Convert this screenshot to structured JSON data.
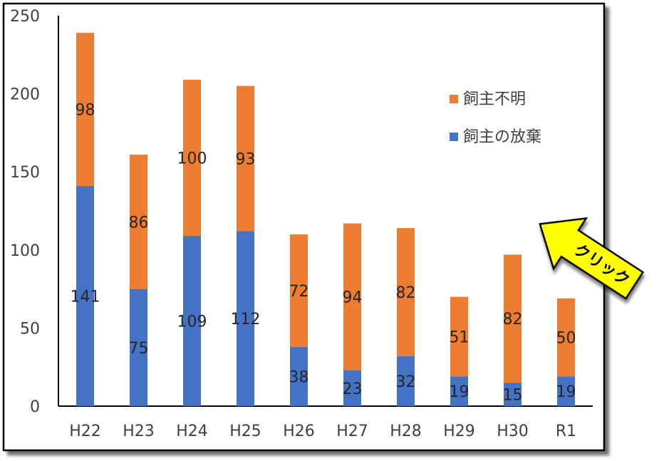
{
  "chart_data": {
    "type": "bar",
    "stacked": true,
    "categories": [
      "H22",
      "H23",
      "H24",
      "H25",
      "H26",
      "H27",
      "H28",
      "H29",
      "H30",
      "R1"
    ],
    "series": [
      {
        "name": "飼主の放棄",
        "color": "#4472c4",
        "values": [
          141,
          75,
          109,
          112,
          38,
          23,
          32,
          19,
          15,
          19
        ]
      },
      {
        "name": "飼主不明",
        "color": "#ed7d31",
        "values": [
          98,
          86,
          100,
          93,
          72,
          94,
          82,
          51,
          82,
          50
        ]
      }
    ],
    "ylim": [
      0,
      250
    ],
    "yticks": [
      0,
      50,
      100,
      150,
      200,
      250
    ],
    "legend_position": "upper-right inside plot",
    "legend_order": [
      "飼主不明",
      "飼主の放棄"
    ],
    "grid": false
  },
  "annotation": {
    "text": "クリック",
    "color": "#ffff00",
    "icon": "arrow-icon"
  }
}
